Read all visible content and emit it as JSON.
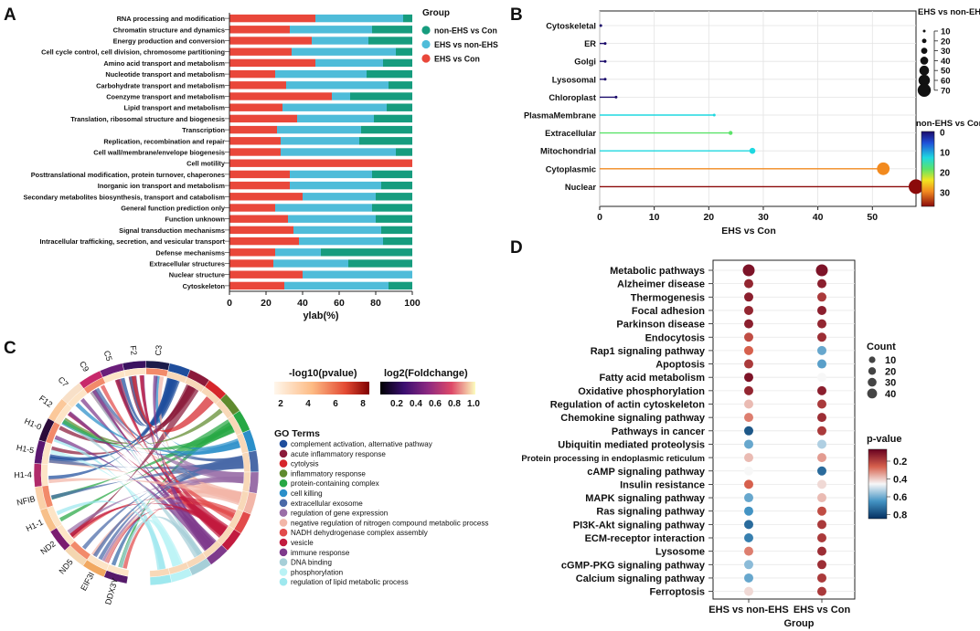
{
  "panel_letters": {
    "a": "A",
    "b": "B",
    "c": "C",
    "d": "D"
  },
  "colors": {
    "red": "#e9473a",
    "blue": "#4fbcd9",
    "green": "#169c7e"
  },
  "chart_data": [
    {
      "id": "A",
      "type": "bar",
      "orientation": "horizontal-stacked-percent",
      "xlabel": "ylab(%)",
      "xlim": [
        0,
        100
      ],
      "xticks": [
        0,
        20,
        40,
        60,
        80,
        100
      ],
      "legend_title": "Group",
      "legend": [
        {
          "name": "non-EHS vs Con",
          "color": "#169c7e"
        },
        {
          "name": "EHS vs non-EHS",
          "color": "#4fbcd9"
        },
        {
          "name": "EHS vs Con",
          "color": "#e9473a"
        }
      ],
      "categories": [
        "RNA processing and modification",
        "Chromatin structure and dynamics",
        "Energy production and conversion",
        "Cell cycle control, cell division, chromosome partitioning",
        "Amino acid transport and metabolism",
        "Nucleotide transport and metabolism",
        "Carbohydrate transport and metabolism",
        "Coenzyme transport and metabolism",
        "Lipid transport and metabolism",
        "Translation, ribosomal structure and biogenesis",
        "Transcription",
        "Replication, recombination and repair",
        "Cell wall/membrane/envelope biogenesis",
        "Cell motility",
        "Posttranslational modification, protein turnover, chaperones",
        "Inorganic ion transport and metabolism",
        "Secondary metabolites biosynthesis, transport and catabolism",
        "General function prediction only",
        "Function unknown",
        "Signal transduction mechanisms",
        "Intracellular trafficking, secretion, and vesicular transport",
        "Defense mechanisms",
        "Extracellular structures",
        "Nuclear structure",
        "Cytoskeleton"
      ],
      "series": [
        {
          "name": "EHS vs Con",
          "values": [
            47,
            33,
            45,
            34,
            47,
            25,
            31,
            56,
            29,
            37,
            26,
            28,
            28,
            100,
            33,
            33,
            40,
            25,
            32,
            35,
            38,
            25,
            24,
            40,
            30
          ]
        },
        {
          "name": "EHS vs non-EHS",
          "values": [
            48,
            45,
            31,
            57,
            37,
            50,
            56,
            10,
            57,
            42,
            46,
            43,
            63,
            0,
            45,
            50,
            40,
            53,
            48,
            48,
            46,
            25,
            41,
            60,
            57
          ]
        },
        {
          "name": "non-EHS vs Con",
          "values": [
            5,
            22,
            24,
            9,
            16,
            25,
            13,
            34,
            14,
            21,
            28,
            29,
            9,
            0,
            22,
            17,
            20,
            22,
            20,
            17,
            16,
            50,
            35,
            0,
            13
          ]
        }
      ]
    },
    {
      "id": "B",
      "type": "lollipop",
      "xlabel": "EHS vs Con",
      "xlim": [
        0,
        58
      ],
      "xticks": [
        0,
        10,
        20,
        30,
        40,
        50
      ],
      "categories": [
        "Cytoskeletal",
        "ER",
        "Golgi",
        "Lysosomal",
        "Chloroplast",
        "PlasmaMembrane",
        "Extracellular",
        "Mitochondrial",
        "Cytoplasmic",
        "Nuclear"
      ],
      "x": [
        0.2,
        1,
        1,
        1,
        3,
        21,
        24,
        28,
        52,
        58
      ],
      "non_ehs_vs_con": [
        0.5,
        1,
        1,
        2,
        1,
        10,
        16,
        12,
        24,
        35
      ],
      "ehs_vs_non_ehs": [
        2,
        3,
        3,
        3,
        5,
        8,
        12,
        18,
        38,
        44
      ],
      "size_legend_title": "EHS vs non-EHS",
      "size_legend": [
        "10",
        "20",
        "30",
        "40",
        "50",
        "60",
        "70"
      ],
      "color_legend_title": "non-EHS vs Con",
      "color_ticks": [
        "0",
        "10",
        "20",
        "30"
      ]
    },
    {
      "id": "C",
      "type": "chord",
      "scale1_title": "-log10(pvalue)",
      "scale1_ticks": [
        "2",
        "4",
        "6",
        "8"
      ],
      "scale2_title": "log2(Foldchange)",
      "scale2_ticks": [
        "0.2",
        "0.4",
        "0.6",
        "0.8",
        "1.0"
      ],
      "genes": [
        "C3",
        "F2",
        "C5",
        "C9",
        "C7",
        "F12",
        "H1-0",
        "H1-5",
        "H1-4",
        "NFIB",
        "H1-1",
        "ND2",
        "ND5",
        "EIF3I",
        "DDX3Y"
      ],
      "go_title": "GO Terms",
      "go_terms": [
        {
          "name": "complement activation, alternative pathway",
          "color": "#1f4e9c"
        },
        {
          "name": "acute inflammatory response",
          "color": "#8b1a3a"
        },
        {
          "name": "cytolysis",
          "color": "#d6262b"
        },
        {
          "name": "inflammatory response",
          "color": "#5f8a2e"
        },
        {
          "name": "protein-containing complex",
          "color": "#27a844"
        },
        {
          "name": "cell killing",
          "color": "#2a8fc9"
        },
        {
          "name": "extracellular exosome",
          "color": "#4a6aa8"
        },
        {
          "name": "regulation of gene expression",
          "color": "#9a6fa8"
        },
        {
          "name": "negative regulation of nitrogen compound metabolic process",
          "color": "#f2b6a8"
        },
        {
          "name": "NADH dehydrogenase complex assembly",
          "color": "#e24b4b"
        },
        {
          "name": "vesicle",
          "color": "#c21b3f"
        },
        {
          "name": "immune response",
          "color": "#7e3a8c"
        },
        {
          "name": "DNA binding",
          "color": "#a6cfd8"
        },
        {
          "name": "phosphorylation",
          "color": "#b9f2f5"
        },
        {
          "name": "regulation of lipid metabolic process",
          "color": "#9ee8ee"
        }
      ]
    },
    {
      "id": "D",
      "type": "dotplot",
      "xlabel": "Group",
      "groups": [
        "EHS vs non-EHS",
        "EHS vs Con"
      ],
      "pathways": [
        "Metabolic pathways",
        "Alzheimer disease",
        "Thermogenesis",
        "Focal adhesion",
        "Parkinson disease",
        "Endocytosis",
        "Rap1 signaling pathway",
        "Apoptosis",
        "Fatty acid metabolism",
        "Oxidative phosphorylation",
        "Regulation of actin cytoskeleton",
        "Chemokine signaling pathway",
        "Pathways in cancer",
        "Ubiquitin mediated proteolysis",
        "Protein processing in endoplasmic reticulum",
        "cAMP signaling pathway",
        "Insulin resistance",
        "MAPK signaling pathway",
        "Ras signaling pathway",
        "PI3K-Akt signaling pathway",
        "ECM-receptor interaction",
        "Lysosome",
        "cGMP-PKG signaling pathway",
        "Calcium signaling pathway",
        "Ferroptosis"
      ],
      "pvalue": [
        [
          0.05,
          0.05
        ],
        [
          0.1,
          0.08
        ],
        [
          0.08,
          0.15
        ],
        [
          0.1,
          0.08
        ],
        [
          0.08,
          0.1
        ],
        [
          0.2,
          0.12
        ],
        [
          0.25,
          0.7
        ],
        [
          0.15,
          0.72
        ],
        [
          0.05,
          0.5
        ],
        [
          0.1,
          0.08
        ],
        [
          0.4,
          0.15
        ],
        [
          0.3,
          0.12
        ],
        [
          0.9,
          0.15
        ],
        [
          0.7,
          0.6
        ],
        [
          0.4,
          0.35
        ],
        [
          0.5,
          0.85
        ],
        [
          0.25,
          0.45
        ],
        [
          0.7,
          0.4
        ],
        [
          0.75,
          0.2
        ],
        [
          0.85,
          0.15
        ],
        [
          0.8,
          0.15
        ],
        [
          0.3,
          0.12
        ],
        [
          0.65,
          0.12
        ],
        [
          0.7,
          0.15
        ],
        [
          0.45,
          0.15
        ]
      ],
      "count": [
        [
          40,
          40
        ],
        [
          20,
          20
        ],
        [
          20,
          20
        ],
        [
          20,
          20
        ],
        [
          20,
          20
        ],
        [
          20,
          20
        ],
        [
          20,
          20
        ],
        [
          20,
          20
        ],
        [
          20,
          20
        ],
        [
          20,
          20
        ],
        [
          20,
          20
        ],
        [
          20,
          20
        ],
        [
          20,
          20
        ],
        [
          20,
          20
        ],
        [
          20,
          20
        ],
        [
          20,
          20
        ],
        [
          20,
          20
        ],
        [
          20,
          20
        ],
        [
          20,
          20
        ],
        [
          20,
          20
        ],
        [
          20,
          20
        ],
        [
          20,
          20
        ],
        [
          20,
          20
        ],
        [
          20,
          20
        ],
        [
          20,
          20
        ]
      ],
      "size_legend_title": "Count",
      "size_legend": [
        "10",
        "20",
        "30",
        "40"
      ],
      "color_legend_title": "p-value",
      "color_ticks": [
        "0.2",
        "0.4",
        "0.6",
        "0.8"
      ]
    }
  ]
}
